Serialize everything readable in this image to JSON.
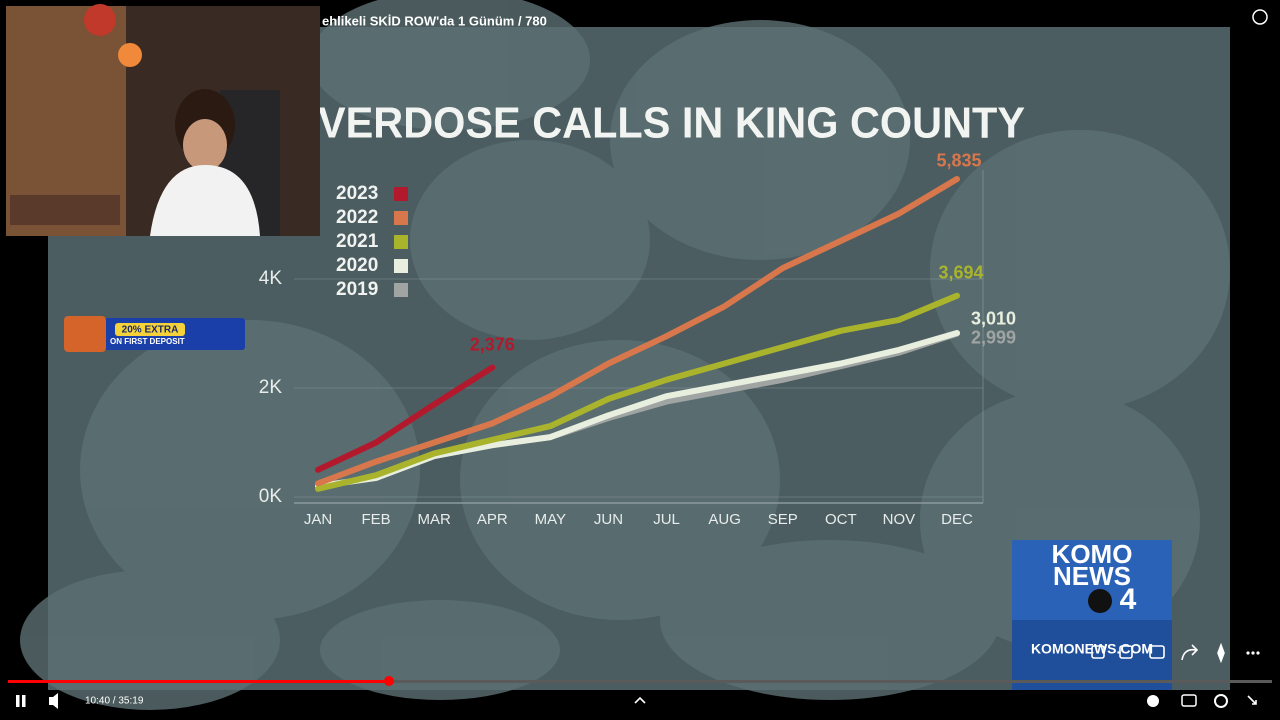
{
  "video": {
    "title": "ehlikeli SKİD ROW'da 1 Günüm / 780",
    "time": "10:40 / 35:19"
  },
  "ad": {
    "line1": "20% EXTRA",
    "line2": "ON FIRST DEPOSIT"
  },
  "logo": {
    "line1": "KOMO",
    "line2": "NEWS",
    "channel": "4",
    "url": "KOMONEWS.COM"
  },
  "chart_data": {
    "type": "line",
    "title": "VERDOSE CALLS IN KING COUNTY",
    "categories": [
      "JAN",
      "FEB",
      "MAR",
      "APR",
      "MAY",
      "JUN",
      "JUL",
      "AUG",
      "SEP",
      "OCT",
      "NOV",
      "DEC"
    ],
    "ylim": [
      0,
      6000
    ],
    "yticks": [
      {
        "value": 0,
        "label": "0K"
      },
      {
        "value": 2000,
        "label": "2K"
      },
      {
        "value": 4000,
        "label": "4K"
      }
    ],
    "grid": true,
    "series": [
      {
        "name": "2023",
        "color": "#b3192c",
        "values": [
          500,
          1000,
          1700,
          2376,
          null,
          null,
          null,
          null,
          null,
          null,
          null,
          null
        ],
        "value_labels": [
          null,
          null,
          null,
          "2,376",
          null,
          null,
          null,
          null,
          null,
          null,
          null,
          null
        ]
      },
      {
        "name": "2022",
        "color": "#d9774c",
        "values": [
          250,
          650,
          1000,
          1350,
          1850,
          2450,
          2950,
          3500,
          4200,
          4700,
          5200,
          5835
        ],
        "value_labels": [
          null,
          null,
          null,
          null,
          null,
          null,
          null,
          null,
          null,
          null,
          null,
          "5,835"
        ]
      },
      {
        "name": "2021",
        "color": "#a9b42c",
        "values": [
          150,
          400,
          800,
          1050,
          1300,
          1800,
          2150,
          2450,
          2750,
          3050,
          3250,
          3694
        ],
        "value_labels": [
          null,
          null,
          null,
          null,
          null,
          null,
          null,
          null,
          null,
          null,
          null,
          "3,694"
        ]
      },
      {
        "name": "2020",
        "color": "#e9efde",
        "values": [
          200,
          350,
          750,
          950,
          1100,
          1500,
          1850,
          2050,
          2250,
          2450,
          2700,
          3010
        ],
        "value_labels": [
          null,
          null,
          null,
          null,
          null,
          null,
          null,
          null,
          null,
          null,
          null,
          "3,010"
        ]
      },
      {
        "name": "2019",
        "color": "#a0a4a2",
        "values": [
          200,
          350,
          750,
          950,
          1100,
          1450,
          1750,
          1950,
          2150,
          2400,
          2650,
          2999
        ],
        "value_labels": [
          null,
          null,
          null,
          null,
          null,
          null,
          null,
          null,
          null,
          null,
          null,
          "2,999"
        ]
      }
    ]
  }
}
